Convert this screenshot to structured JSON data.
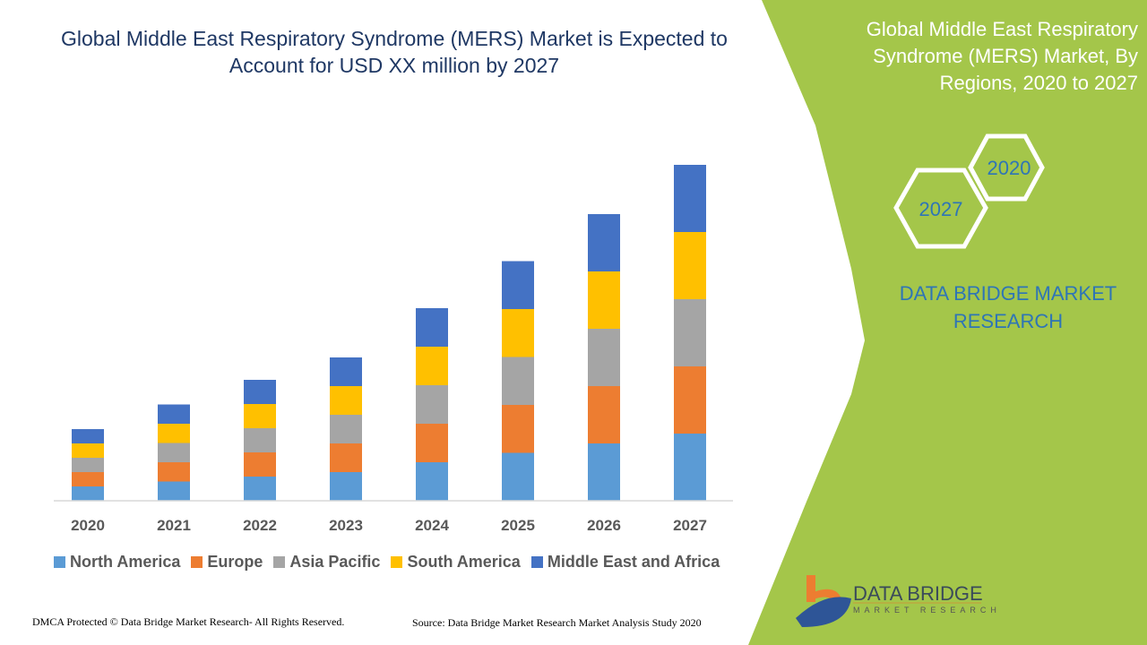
{
  "chart_data": {
    "type": "bar",
    "stacked": true,
    "title": "Global Middle East Respiratory Syndrome (MERS) Market is Expected to Account for USD XX million by 2027",
    "categories": [
      "2020",
      "2021",
      "2022",
      "2023",
      "2024",
      "2025",
      "2026",
      "2027"
    ],
    "series": [
      {
        "name": "North America",
        "color": "#5b9bd5",
        "values": [
          3.2,
          4.3,
          5.4,
          6.4,
          8.6,
          10.7,
          12.8,
          15
        ]
      },
      {
        "name": "Europe",
        "color": "#ed7d31",
        "values": [
          3.2,
          4.3,
          5.4,
          6.4,
          8.6,
          10.7,
          12.8,
          15
        ]
      },
      {
        "name": "Asia Pacific",
        "color": "#a5a5a5",
        "values": [
          3.2,
          4.3,
          5.4,
          6.4,
          8.6,
          10.7,
          12.8,
          15
        ]
      },
      {
        "name": "South America",
        "color": "#ffc000",
        "values": [
          3.2,
          4.3,
          5.4,
          6.4,
          8.6,
          10.7,
          12.8,
          15
        ]
      },
      {
        "name": "Middle East and Africa",
        "color": "#4472c4",
        "values": [
          3.2,
          4.3,
          5.4,
          6.4,
          8.6,
          10.7,
          12.8,
          15
        ]
      }
    ],
    "ylim": [
      0,
      80
    ],
    "y_axis_shown": false,
    "grid": false,
    "legend": "bottom"
  },
  "footer": {
    "dmca": "DMCA Protected © Data Bridge Market Research- All Rights Reserved.",
    "source": "Source: Data Bridge Market Research Market Analysis Study 2020"
  },
  "side": {
    "title": "Global Middle East Respiratory Syndrome (MERS) Market, By Regions, 2020 to 2027",
    "hex_start": "2020",
    "hex_end": "2027",
    "brand": "DATA BRIDGE MARKET RESEARCH",
    "logo_text": "DATA BRIDGE",
    "logo_sub": "MARKET RESEARCH",
    "panel_color": "#a4c64a"
  }
}
